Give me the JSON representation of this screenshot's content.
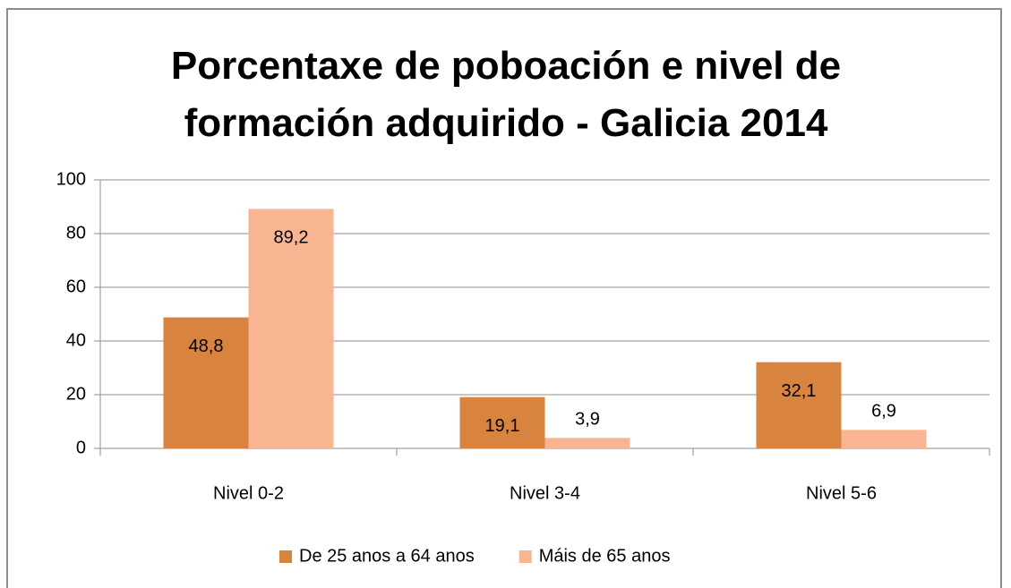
{
  "chart_data": {
    "type": "bar",
    "title": "Porcentaxe de poboación e nivel de formación adquirido - Galicia 2014",
    "categories": [
      "Nivel 0-2",
      "Nivel 3-4",
      "Nivel 5-6"
    ],
    "series": [
      {
        "name": "De 25 anos a 64 anos",
        "color": "#d9843e",
        "values": [
          48.8,
          19.1,
          32.1
        ],
        "value_labels": [
          "48,8",
          "19,1",
          "32,1"
        ]
      },
      {
        "name": "Máis de 65 anos",
        "color": "#f9b592",
        "values": [
          89.2,
          3.9,
          6.9
        ],
        "value_labels": [
          "89,2",
          "3,9",
          "6,9"
        ]
      }
    ],
    "ylim": [
      0,
      100
    ],
    "yticks": [
      0,
      20,
      40,
      60,
      80,
      100
    ],
    "grid": true,
    "legend": "bottom"
  }
}
